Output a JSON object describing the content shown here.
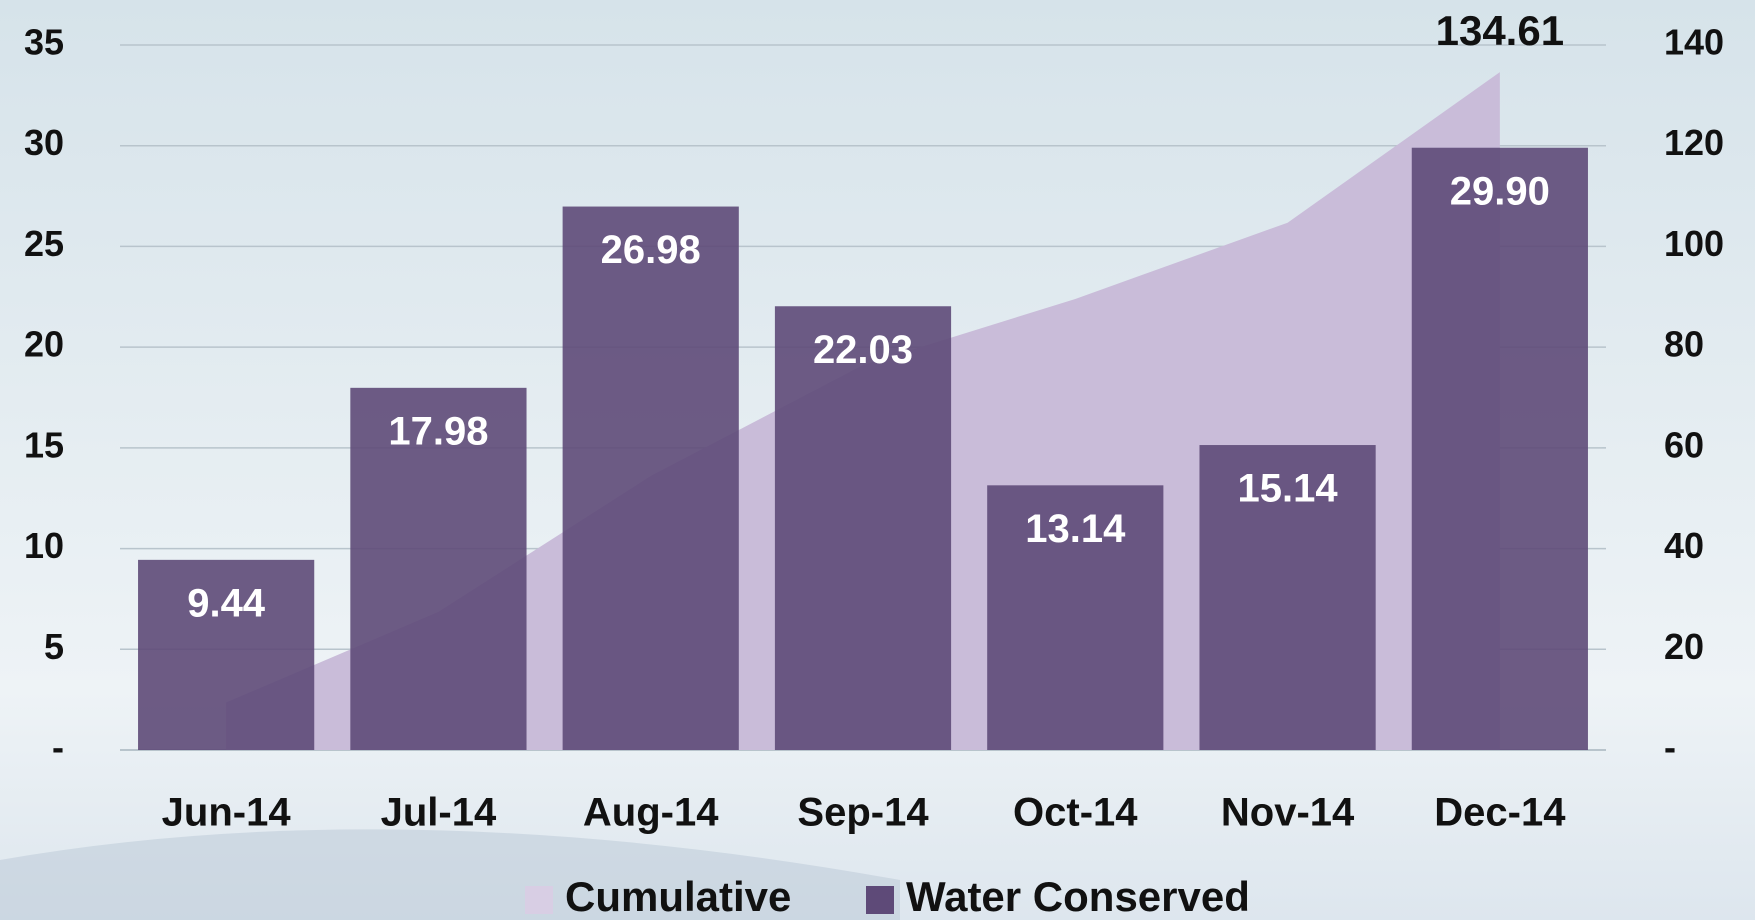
{
  "chart_data": {
    "type": "bar_area",
    "categories": [
      "Jun-14",
      "Jul-14",
      "Aug-14",
      "Sep-14",
      "Oct-14",
      "Nov-14",
      "Dec-14"
    ],
    "series": [
      {
        "name": "Cumulative",
        "type": "area",
        "axis": "y2",
        "color": "#c9bcd9",
        "values": [
          9.44,
          27.42,
          54.4,
          76.43,
          89.57,
          104.71,
          134.61
        ],
        "value_labels": [
          null,
          null,
          null,
          null,
          null,
          null,
          "134.61"
        ]
      },
      {
        "name": "Water Conserved",
        "type": "bar",
        "color": "#5e4a78",
        "values": [
          9.44,
          17.98,
          26.98,
          22.03,
          13.14,
          15.14,
          29.9
        ],
        "value_labels": [
          "9.44",
          "17.98",
          "26.98",
          "22.03",
          "13.14",
          "15.14",
          "29.90"
        ]
      }
    ],
    "ylim": [
      0,
      35
    ],
    "yticks": [
      {
        "value": 0,
        "label": "-"
      },
      5,
      10,
      15,
      20,
      25,
      30,
      35
    ],
    "y2lim": [
      0,
      140
    ],
    "y2ticks": [
      {
        "value": 0,
        "label": "-"
      },
      20,
      40,
      60,
      80,
      100,
      120,
      140
    ],
    "grid": true
  }
}
